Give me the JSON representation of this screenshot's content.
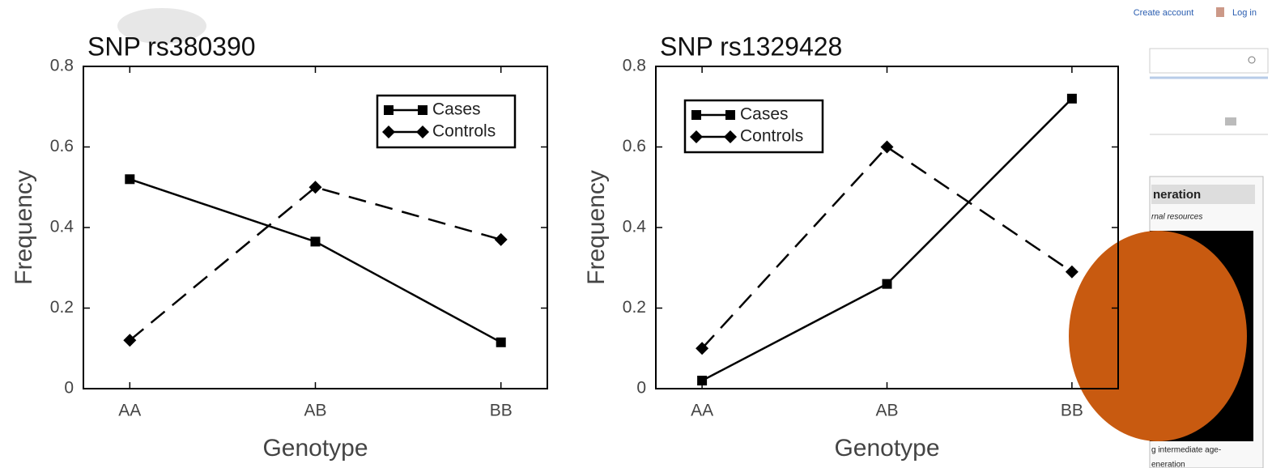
{
  "chart_data": [
    {
      "type": "line",
      "title": "SNP rs380390",
      "x_label": "Genotype",
      "y_label": "Frequency",
      "categories": [
        "AA",
        "AB",
        "BB"
      ],
      "series": [
        {
          "name": "Cases",
          "color": "#000000",
          "linestyle": "solid",
          "marker": "square",
          "values": [
            0.52,
            0.365,
            0.115
          ]
        },
        {
          "name": "Controls",
          "color": "#000000",
          "linestyle": "dashed",
          "marker": "diamond",
          "values": [
            0.12,
            0.5,
            0.37
          ]
        }
      ],
      "ylim": [
        0,
        0.8
      ],
      "yticks": [
        0,
        0.2,
        0.4,
        0.6,
        0.8
      ],
      "grid": false,
      "legend": "upper right"
    },
    {
      "type": "line",
      "title": "SNP rs1329428",
      "x_label": "Genotype",
      "y_label": "Frequency",
      "categories": [
        "AA",
        "AB",
        "BB"
      ],
      "series": [
        {
          "name": "Cases",
          "color": "#000000",
          "linestyle": "solid",
          "marker": "square",
          "values": [
            0.02,
            0.26,
            0.72
          ]
        },
        {
          "name": "Controls",
          "color": "#000000",
          "linestyle": "dashed",
          "marker": "diamond",
          "values": [
            0.1,
            0.6,
            0.29
          ]
        }
      ],
      "ylim": [
        0,
        0.8
      ],
      "yticks": [
        0,
        0.2,
        0.4,
        0.6,
        0.8
      ],
      "grid": false,
      "legend": "upper left"
    }
  ],
  "header": {
    "create_account": "Create account",
    "log_in": "Log in"
  },
  "sidebar": {
    "infobox_title": "neration",
    "infobox_subtitle": "rnal resources",
    "caption_line1": "g intermediate age-",
    "caption_line2": "eneration"
  }
}
